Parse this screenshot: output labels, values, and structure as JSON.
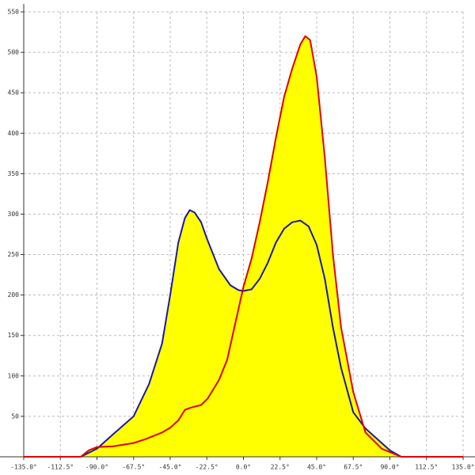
{
  "chart_data": {
    "type": "line",
    "xlim": [
      -135,
      135
    ],
    "xticks": [
      {
        "value": -135,
        "label": "-135.0°"
      },
      {
        "value": -112.5,
        "label": "-112.5°"
      },
      {
        "value": -90,
        "label": "-90.0°"
      },
      {
        "value": -67.5,
        "label": "-67.5°"
      },
      {
        "value": -45,
        "label": "-45.0°"
      },
      {
        "value": -22.5,
        "label": "-22.5°"
      },
      {
        "value": 0,
        "label": "0.0°"
      },
      {
        "value": 22.5,
        "label": "22.5°"
      },
      {
        "value": 45,
        "label": "45.0°"
      },
      {
        "value": 67.5,
        "label": "67.5°"
      },
      {
        "value": 90,
        "label": "90.0°"
      },
      {
        "value": 112.5,
        "label": "112.5°"
      },
      {
        "value": 135,
        "label": "135.0°"
      }
    ],
    "ylim": [
      0,
      550
    ],
    "yticks": [
      50,
      100,
      150,
      200,
      250,
      300,
      350,
      400,
      450,
      500,
      550
    ],
    "grid": true,
    "fill_color": "#ffff00",
    "series": [
      {
        "color": "#1a1aa0",
        "x": [
          -100,
          -90,
          -80,
          -67.5,
          -58,
          -50,
          -45,
          -40,
          -36,
          -33,
          -30,
          -26,
          -22.5,
          -15,
          -8,
          -3,
          0,
          5,
          10,
          15,
          20,
          25,
          30,
          35,
          40,
          45,
          50,
          55,
          60,
          67.5,
          75,
          90,
          97
        ],
        "values": [
          0,
          10,
          28,
          50,
          90,
          140,
          200,
          265,
          295,
          305,
          302,
          290,
          270,
          232,
          212,
          206,
          205,
          207,
          220,
          240,
          265,
          282,
          290,
          292,
          285,
          262,
          220,
          160,
          110,
          55,
          35,
          8,
          0
        ]
      },
      {
        "color": "#e00000",
        "x": [
          -135,
          -100,
          -95,
          -90,
          -80,
          -67.5,
          -60,
          -50,
          -45,
          -40,
          -36,
          -32,
          -26,
          -22,
          -18,
          -15,
          -10,
          -5,
          0,
          5,
          10,
          15,
          20,
          25,
          30,
          35,
          38,
          41,
          45,
          50,
          55,
          60,
          67.5,
          75,
          85,
          97,
          135
        ],
        "values": [
          0,
          0,
          8,
          12,
          13,
          17,
          22,
          30,
          36,
          45,
          58,
          61,
          64,
          72,
          85,
          95,
          120,
          165,
          210,
          245,
          290,
          340,
          395,
          445,
          480,
          510,
          520,
          515,
          470,
          370,
          250,
          160,
          80,
          30,
          10,
          0,
          0
        ]
      }
    ]
  }
}
